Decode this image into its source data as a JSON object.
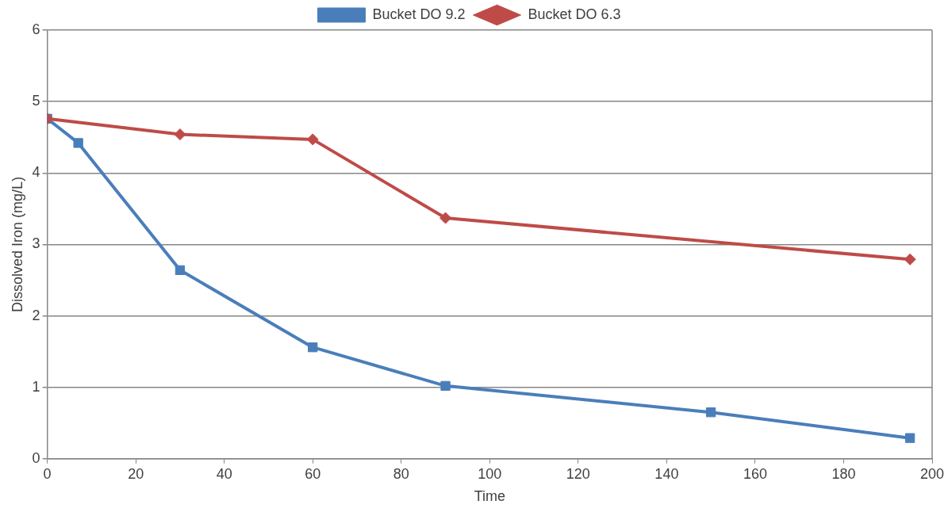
{
  "chart_data": {
    "type": "line",
    "xlabel": "Time",
    "ylabel": "Dissolved Iron (mg/L)",
    "series": [
      {
        "name": "Bucket DO 9.2",
        "color": "#4a7ebb",
        "marker": "square",
        "x": [
          0,
          7,
          30,
          60,
          90,
          150,
          195
        ],
        "values": [
          4.76,
          4.42,
          2.64,
          1.56,
          1.02,
          0.65,
          0.29
        ]
      },
      {
        "name": "Bucket DO 6.3",
        "color": "#be4b48",
        "marker": "diamond",
        "x": [
          0,
          30,
          60,
          90,
          195
        ],
        "values": [
          4.76,
          4.54,
          4.47,
          3.37,
          2.79
        ]
      }
    ],
    "xlim": [
      0,
      200
    ],
    "xticks": [
      0,
      20,
      40,
      60,
      80,
      100,
      120,
      140,
      160,
      180,
      200
    ],
    "ylim": [
      0,
      6
    ],
    "yticks": [
      0,
      1,
      2,
      3,
      4,
      5,
      6
    ],
    "grid": "y",
    "legend": "top",
    "line_style": "solid"
  }
}
